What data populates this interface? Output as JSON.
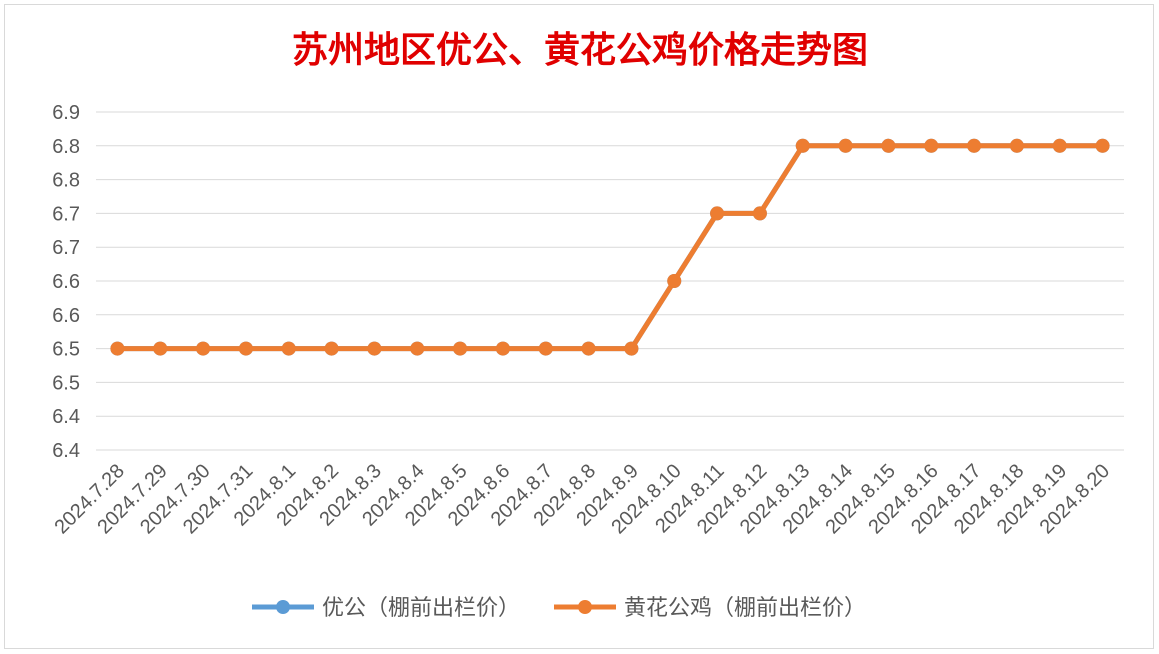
{
  "chart_data": {
    "type": "line",
    "title": "苏州地区优公、黄花公鸡价格走势图",
    "xlabel": "",
    "ylabel": "",
    "categories": [
      "2024.7.28",
      "2024.7.29",
      "2024.7.30",
      "2024.7.31",
      "2024.8.1",
      "2024.8.2",
      "2024.8.3",
      "2024.8.4",
      "2024.8.5",
      "2024.8.6",
      "2024.8.7",
      "2024.8.8",
      "2024.8.9",
      "2024.8.10",
      "2024.8.11",
      "2024.8.12",
      "2024.8.13",
      "2024.8.14",
      "2024.8.15",
      "2024.8.16",
      "2024.8.17",
      "2024.8.18",
      "2024.8.19",
      "2024.8.20"
    ],
    "y_ticks": [
      "6.4",
      "6.4",
      "6.5",
      "6.5",
      "6.6",
      "6.6",
      "6.7",
      "6.7",
      "6.8",
      "6.8",
      "6.9"
    ],
    "ylim": [
      6.35,
      6.85
    ],
    "grid": true,
    "legend_position": "bottom",
    "series": [
      {
        "name": "优公（棚前出栏价）",
        "color": "#5B9BD5",
        "values": [
          6.5,
          6.5,
          6.5,
          6.5,
          6.5,
          6.5,
          6.5,
          6.5,
          6.5,
          6.5,
          6.5,
          6.5,
          6.5,
          6.6,
          6.7,
          6.7,
          6.8,
          6.8,
          6.8,
          6.8,
          6.8,
          6.8,
          6.8,
          6.8
        ]
      },
      {
        "name": "黄花公鸡（棚前出栏价）",
        "color": "#ED7D31",
        "values": [
          6.5,
          6.5,
          6.5,
          6.5,
          6.5,
          6.5,
          6.5,
          6.5,
          6.5,
          6.5,
          6.5,
          6.5,
          6.5,
          6.6,
          6.7,
          6.7,
          6.8,
          6.8,
          6.8,
          6.8,
          6.8,
          6.8,
          6.8,
          6.8
        ]
      }
    ]
  },
  "colors": {
    "title": "#e00000",
    "axis_text": "#595959",
    "grid": "#d9d9d9"
  }
}
